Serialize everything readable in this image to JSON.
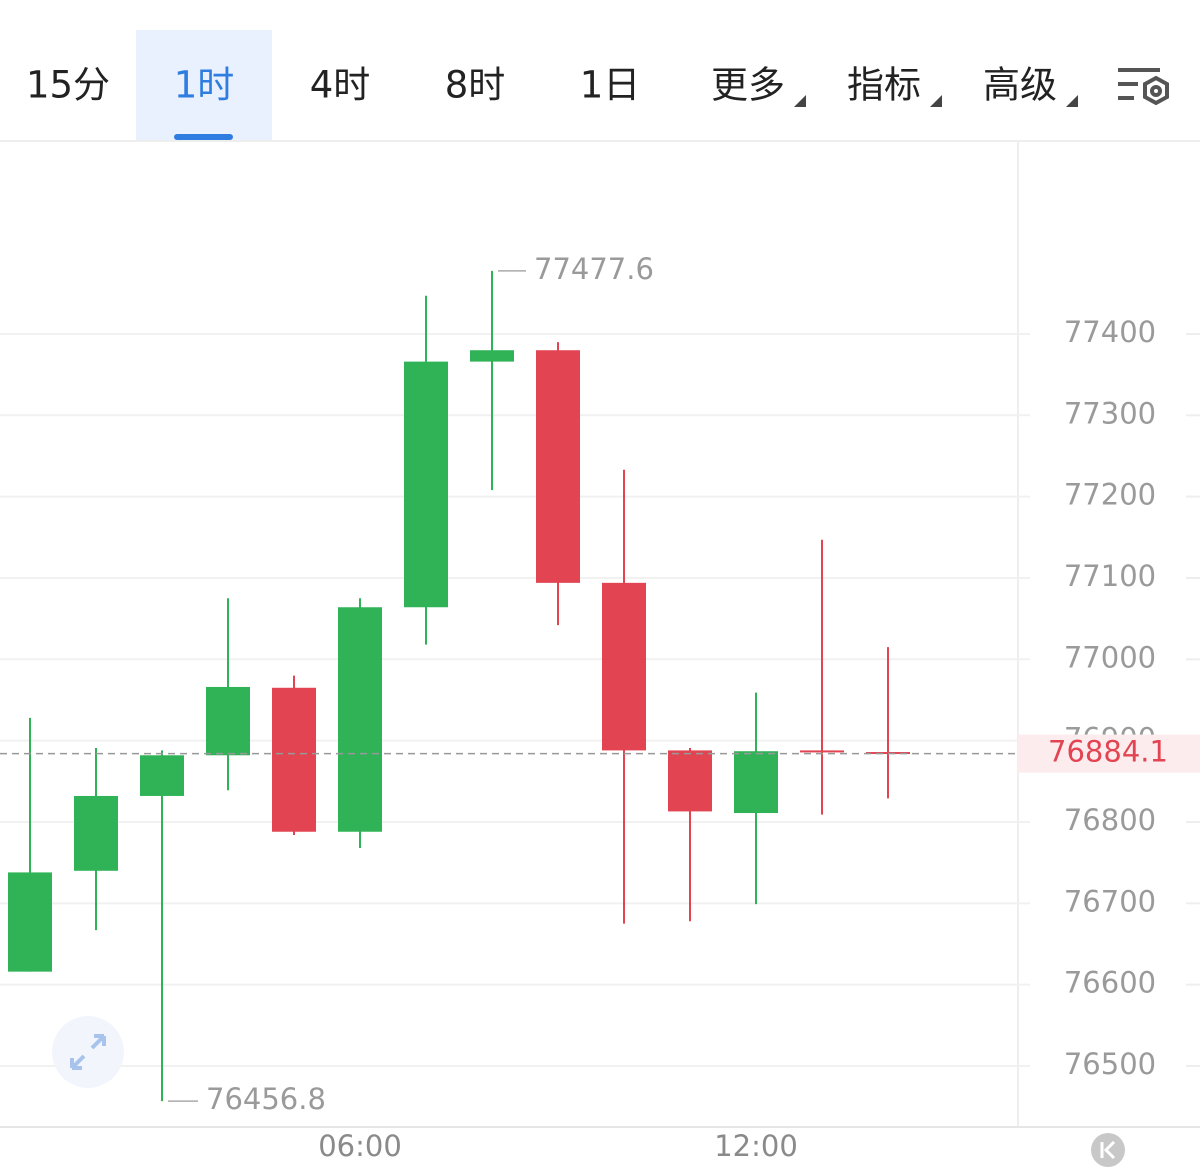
{
  "tabs": [
    {
      "label": "15分"
    },
    {
      "label": "1时"
    },
    {
      "label": "4时"
    },
    {
      "label": "8时"
    },
    {
      "label": "1日"
    },
    {
      "label": "更多",
      "dropdown": true
    },
    {
      "label": "指标",
      "dropdown": true
    },
    {
      "label": "高级",
      "dropdown": true
    }
  ],
  "active_tab": 1,
  "chart_data": {
    "type": "candlestick",
    "categories": [
      null,
      null,
      null,
      null,
      null,
      "06:00",
      null,
      null,
      null,
      null,
      null,
      "12:00",
      null,
      null
    ],
    "open": [
      76616,
      76740,
      76832,
      76882,
      76965,
      76788,
      77064,
      77366,
      77380,
      77094,
      76888,
      76811,
      76888,
      76886
    ],
    "high": [
      76928,
      76891,
      76888,
      77075,
      76980,
      77075,
      77447,
      77477.6,
      77390,
      77233,
      76891,
      76959,
      77147,
      77015
    ],
    "low": [
      76616,
      76667,
      76456.8,
      76839,
      76784,
      76768,
      77018,
      77208,
      77042,
      76675,
      76678,
      76699,
      76809,
      76829
    ],
    "close": [
      76738,
      76832,
      76882,
      76966,
      76788,
      77064,
      77366,
      77380,
      77094,
      76888,
      76813,
      76887,
      76886,
      76884.1
    ],
    "up_color": "#2fb356",
    "down_color": "#e24452",
    "ylim": [
      76425,
      77636
    ],
    "yticks": [
      76500,
      76600,
      76700,
      76800,
      76900,
      77000,
      77100,
      77200,
      77300,
      77400
    ],
    "grid": true
  }
}
